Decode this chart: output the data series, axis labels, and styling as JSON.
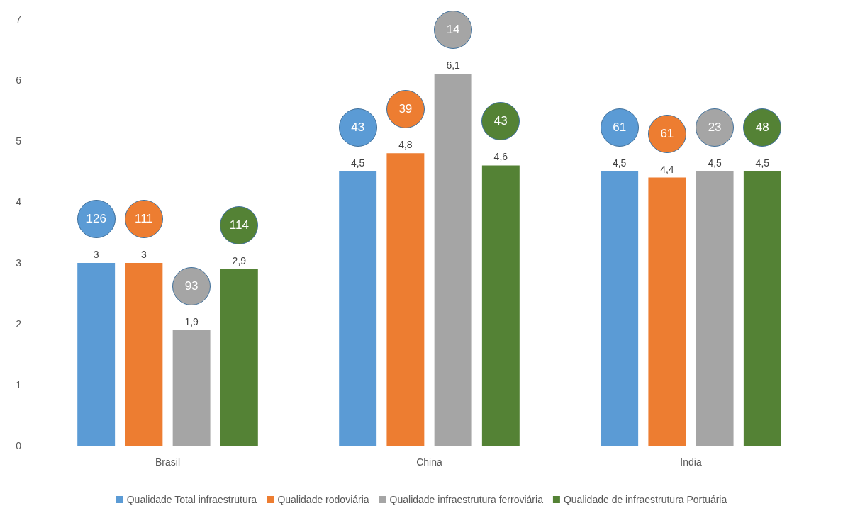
{
  "chart_data": {
    "type": "bar",
    "categories": [
      "Brasil",
      "China",
      "India"
    ],
    "series": [
      {
        "name": "Qualidade Total infraestrutura",
        "color": "#5b9bd5",
        "values": [
          3,
          4.5,
          4.5
        ],
        "value_labels": [
          "3",
          "4,5",
          "4,5"
        ]
      },
      {
        "name": "Qualidade rodoviária",
        "color": "#ed7d31",
        "values": [
          3,
          4.8,
          4.4
        ],
        "value_labels": [
          "3",
          "4,8",
          "4,4"
        ]
      },
      {
        "name": "Qualidade infraestrutura ferroviária",
        "color": "#a5a5a5",
        "values": [
          1.9,
          6.1,
          4.5
        ],
        "value_labels": [
          "1,9",
          "6,1",
          "4,5"
        ]
      },
      {
        "name": "Qualidade de infraestrutura Portuária",
        "color": "#548235",
        "values": [
          2.9,
          4.6,
          4.5
        ],
        "value_labels": [
          "2,9",
          "4,6",
          "4,5"
        ]
      }
    ],
    "annotations": [
      "126",
      "111",
      "93",
      "114",
      "43",
      "39",
      "14",
      "43",
      "61",
      "61",
      "23",
      "48"
    ],
    "ylim": [
      0,
      7
    ],
    "yticks": [
      0,
      1,
      2,
      3,
      4,
      5,
      6,
      7
    ],
    "grid": false,
    "legend": "bottom"
  }
}
